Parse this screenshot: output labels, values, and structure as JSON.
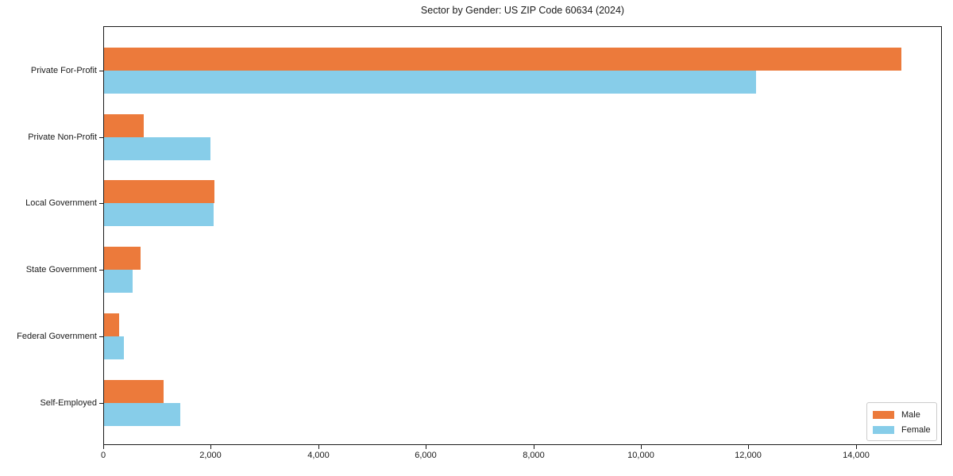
{
  "title": "Sector by Gender: US ZIP Code 60634 (2024)",
  "chart_data": {
    "type": "bar",
    "orientation": "horizontal",
    "title": "Sector by Gender: US ZIP Code 60634 (2024)",
    "categories": [
      "Private For-Profit",
      "Private Non-Profit",
      "Local Government",
      "State Government",
      "Federal Government",
      "Self-Employed"
    ],
    "series": [
      {
        "name": "Male",
        "color": "#ec7a3b",
        "values": [
          14850,
          760,
          2070,
          700,
          300,
          1130
        ]
      },
      {
        "name": "Female",
        "color": "#87cde9",
        "values": [
          12140,
          2000,
          2050,
          540,
          380,
          1440
        ]
      }
    ],
    "xlabel": "",
    "ylabel": "",
    "xlim": [
      0,
      15600
    ],
    "x_ticks": [
      0,
      2000,
      4000,
      6000,
      8000,
      10000,
      12000,
      14000
    ],
    "x_tick_labels": [
      "0",
      "2,000",
      "4,000",
      "6,000",
      "8,000",
      "10,000",
      "12,000",
      "14,000"
    ],
    "grid": false,
    "legend": {
      "position": "lower right",
      "entries": [
        "Male",
        "Female"
      ]
    }
  }
}
